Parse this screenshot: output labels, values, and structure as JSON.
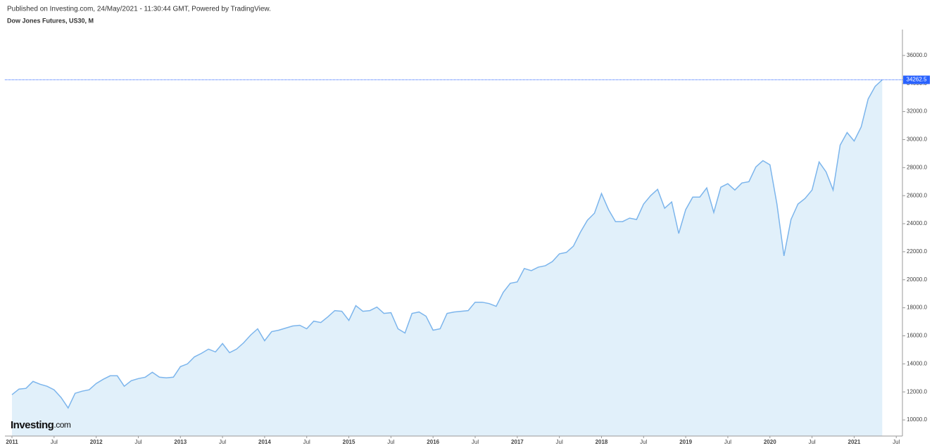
{
  "chart_data": {
    "type": "area",
    "title": "Published on Investing.com, 24/May/2021 - 11:30:44 GMT, Powered by TradingView.",
    "subtitle": "Dow Jones Futures, US30, M",
    "watermark": "Investing",
    "watermark_suffix": ".com",
    "color": "#7cb5ec",
    "fill": "#e1f0fa",
    "categories": [
      "2011",
      null,
      null,
      null,
      null,
      null,
      "Jul",
      null,
      null,
      null,
      null,
      null,
      "2012",
      null,
      null,
      null,
      null,
      null,
      "Jul",
      null,
      null,
      null,
      null,
      null,
      "2013",
      null,
      null,
      null,
      null,
      null,
      "Jul",
      null,
      null,
      null,
      null,
      null,
      "2014",
      null,
      null,
      null,
      null,
      null,
      "Jul",
      null,
      null,
      null,
      null,
      null,
      "2015",
      null,
      null,
      null,
      null,
      null,
      "Jul",
      null,
      null,
      null,
      null,
      null,
      "2016",
      null,
      null,
      null,
      null,
      null,
      "Jul",
      null,
      null,
      null,
      null,
      null,
      "2017",
      null,
      null,
      null,
      null,
      null,
      "Jul",
      null,
      null,
      null,
      null,
      null,
      "2018",
      null,
      null,
      null,
      null,
      null,
      "Jul",
      null,
      null,
      null,
      null,
      null,
      "2019",
      null,
      null,
      null,
      null,
      null,
      "Jul",
      null,
      null,
      null,
      null,
      null,
      "2020",
      null,
      null,
      null,
      null,
      null,
      "Jul",
      null,
      null,
      null,
      null,
      null,
      "2021",
      null,
      null,
      null,
      null,
      null,
      "Jul"
    ],
    "values": [
      11800,
      12200,
      12250,
      12750,
      12550,
      12400,
      12150,
      11600,
      10850,
      11900,
      12050,
      12150,
      12600,
      12900,
      13150,
      13150,
      12400,
      12800,
      12950,
      13050,
      13400,
      13050,
      13000,
      13050,
      13800,
      14000,
      14500,
      14750,
      15050,
      14850,
      15450,
      14800,
      15050,
      15500,
      16050,
      16500,
      15650,
      16300,
      16400,
      16550,
      16700,
      16750,
      16500,
      17050,
      16950,
      17350,
      17800,
      17750,
      17100,
      18150,
      17750,
      17800,
      18050,
      17600,
      17650,
      16500,
      16200,
      17600,
      17700,
      17400,
      16400,
      16500,
      17600,
      17700,
      17750,
      17800,
      18400,
      18400,
      18300,
      18100,
      19100,
      19750,
      19850,
      20800,
      20650,
      20900,
      21000,
      21300,
      21850,
      21950,
      22400,
      23400,
      24250,
      24750,
      26150,
      25000,
      24150,
      24150,
      24400,
      24300,
      25400,
      26000,
      26450,
      25100,
      25550,
      23300,
      25000,
      25900,
      25900,
      26550,
      24800,
      26600,
      26850,
      26400,
      26900,
      27000,
      28050,
      28500,
      28200,
      25400,
      21700,
      24300,
      25400,
      25800,
      26400,
      28400,
      27700,
      26400,
      29600,
      30500,
      29900,
      30900,
      32900,
      33800,
      34262.5,
      null,
      null
    ],
    "ylim": [
      8850,
      37850
    ],
    "yticks": [
      {
        "value": 10000,
        "label": "10000.0"
      },
      {
        "value": 12000,
        "label": "12000.0"
      },
      {
        "value": 14000,
        "label": "14000.0"
      },
      {
        "value": 16000,
        "label": "16000.0"
      },
      {
        "value": 18000,
        "label": "18000.0"
      },
      {
        "value": 20000,
        "label": "20000.0"
      },
      {
        "value": 22000,
        "label": "22000.0"
      },
      {
        "value": 24000,
        "label": "24000.0"
      },
      {
        "value": 26000,
        "label": "26000.0"
      },
      {
        "value": 28000,
        "label": "28000.0"
      },
      {
        "value": 30000,
        "label": "30000.0"
      },
      {
        "value": 32000,
        "label": "32000.0"
      },
      {
        "value": 34000,
        "label": "34000.0"
      },
      {
        "value": 36000,
        "label": "36000.0"
      }
    ]
  }
}
